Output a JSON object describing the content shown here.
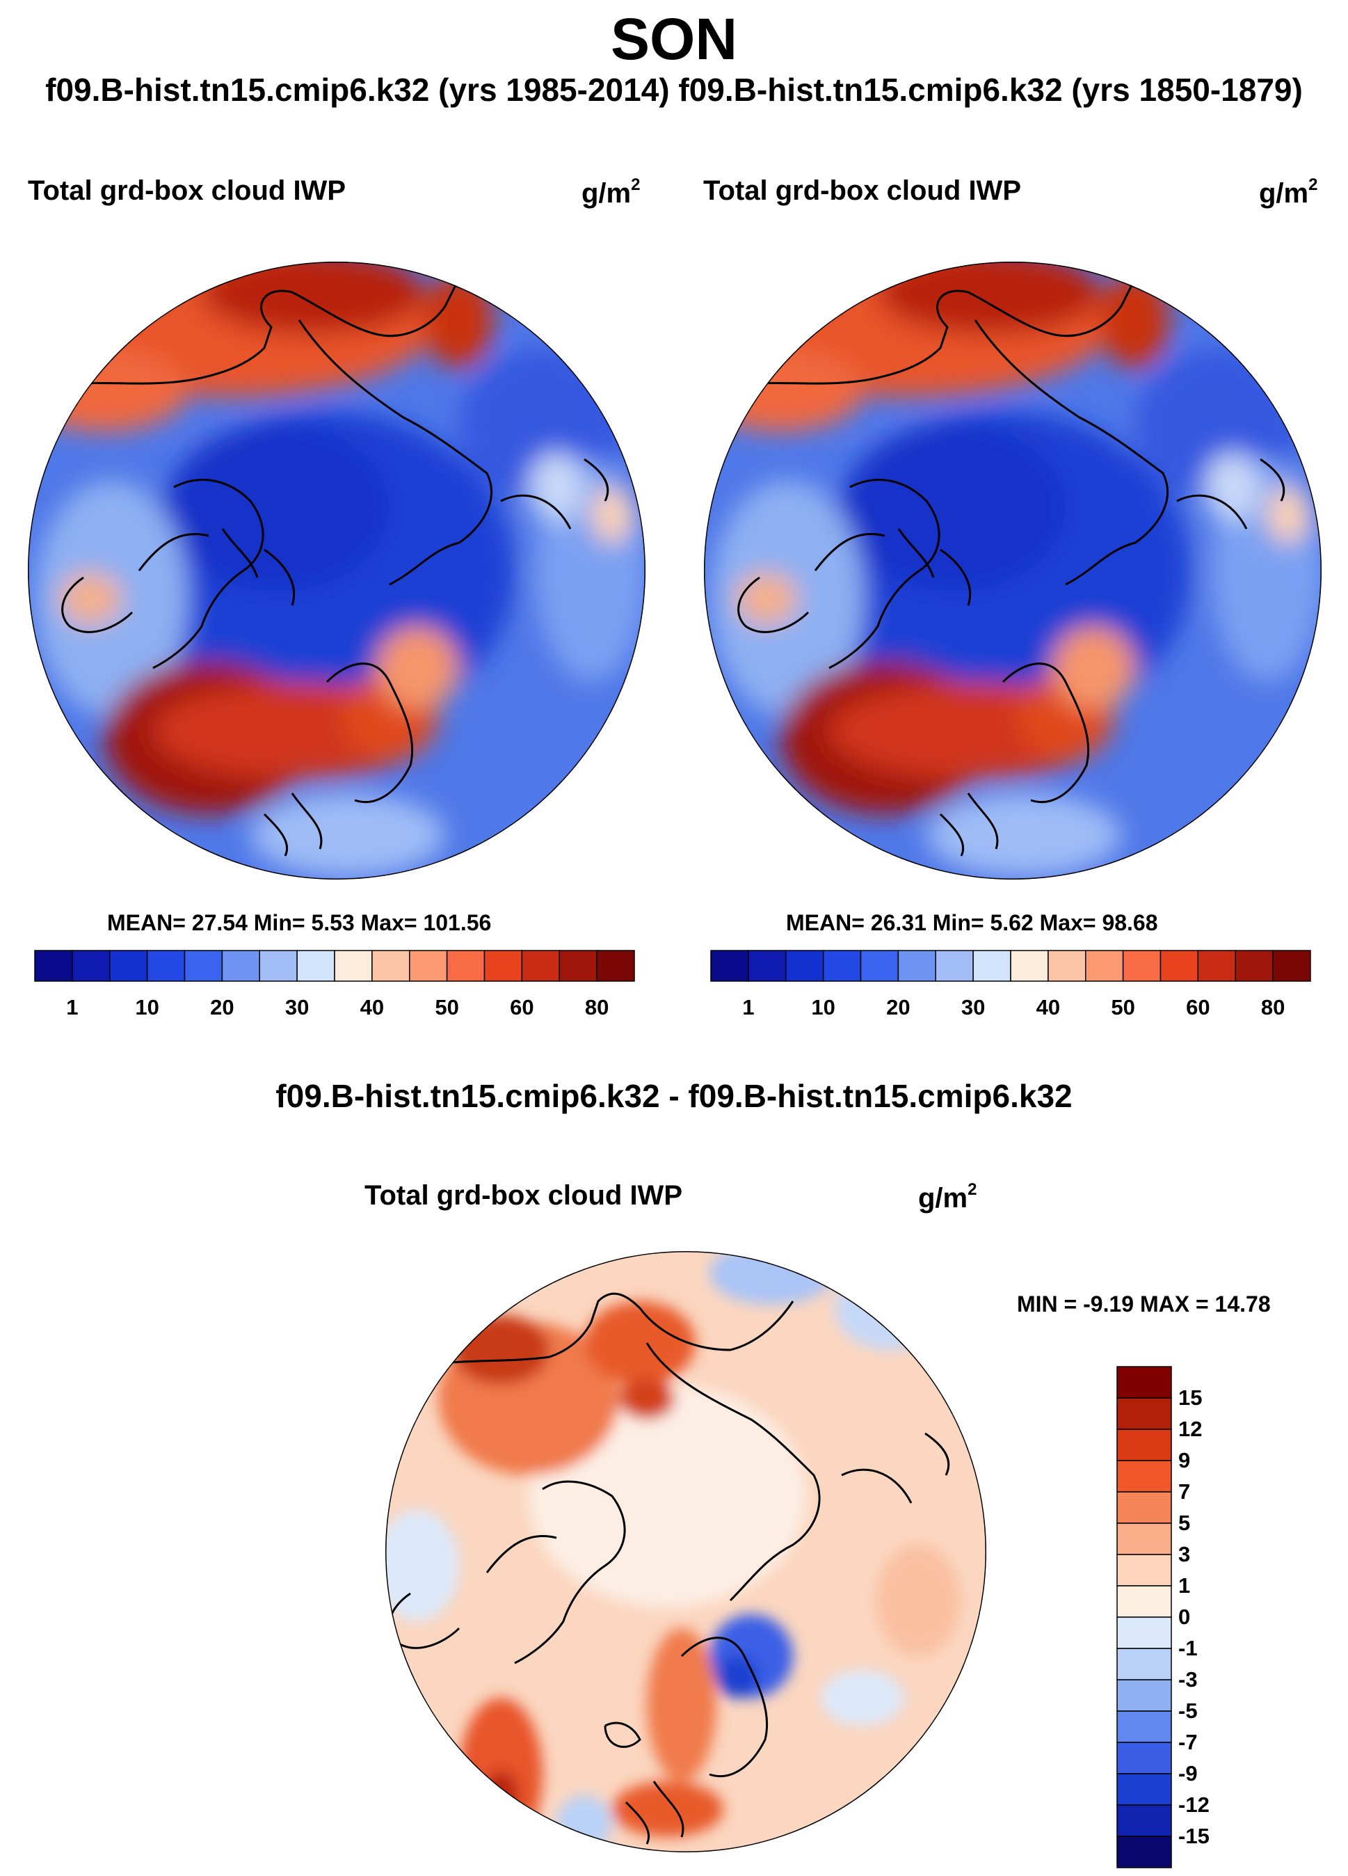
{
  "header": {
    "season": "SON",
    "case_titles": "f09.B-hist.tn15.cmip6.k32 (yrs 1985-2014) f09.B-hist.tn15.cmip6.k32 (yrs 1850-1879)"
  },
  "panels": [
    {
      "variable": "Total grd-box cloud IWP",
      "units": "g/m",
      "units_exp": "2",
      "stats": "MEAN=  27.54  Min=   5.53  Max= 101.56"
    },
    {
      "variable": "Total grd-box cloud IWP",
      "units": "g/m",
      "units_exp": "2",
      "stats": "MEAN=  26.31  Min=   5.62  Max=  98.68"
    }
  ],
  "colorbar_top": {
    "labels": [
      "1",
      "10",
      "20",
      "30",
      "40",
      "50",
      "60",
      "80"
    ],
    "colors": [
      "#0a0a8c",
      "#0f1ab0",
      "#1330d0",
      "#2448e6",
      "#3a64f0",
      "#6e93f2",
      "#a3bdf6",
      "#d2e4fb",
      "#fdebdc",
      "#fcc6a6",
      "#fb9a72",
      "#f86b44",
      "#e8421f",
      "#c92b12",
      "#a0150a",
      "#7a0606"
    ]
  },
  "difference": {
    "title": "f09.B-hist.tn15.cmip6.k32 - f09.B-hist.tn15.cmip6.k32",
    "variable": "Total grd-box cloud IWP",
    "units": "g/m",
    "units_exp": "2",
    "minmax": "MIN =  -9.19 MAX =  14.78",
    "colorbar": {
      "labels": [
        "15",
        "12",
        "9",
        "7",
        "5",
        "3",
        "1",
        "0",
        "-1",
        "-3",
        "-5",
        "-7",
        "-9",
        "-12",
        "-15"
      ],
      "colors": [
        "#800000",
        "#b3200a",
        "#da3a14",
        "#f0582a",
        "#f7855a",
        "#fbac88",
        "#fdd4bc",
        "#fdeee2",
        "#dce9fb",
        "#b9d1f7",
        "#8fb0f3",
        "#6088ee",
        "#3a5fe6",
        "#1b3fd0",
        "#0f22b0",
        "#08086e"
      ]
    }
  }
}
